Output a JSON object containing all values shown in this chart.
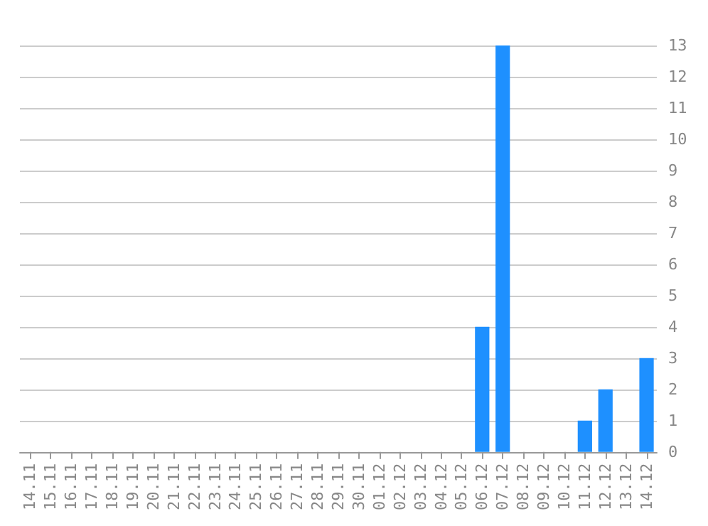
{
  "chart_data": {
    "type": "bar",
    "categories": [
      "14.11",
      "15.11",
      "16.11",
      "17.11",
      "18.11",
      "19.11",
      "20.11",
      "21.11",
      "22.11",
      "23.11",
      "24.11",
      "25.11",
      "26.11",
      "27.11",
      "28.11",
      "29.11",
      "30.11",
      "01.12",
      "02.12",
      "03.12",
      "04.12",
      "05.12",
      "06.12",
      "07.12",
      "08.12",
      "09.12",
      "10.12",
      "11.12",
      "12.12",
      "13.12",
      "14.12"
    ],
    "values": [
      0,
      0,
      0,
      0,
      0,
      0,
      0,
      0,
      0,
      0,
      0,
      0,
      0,
      0,
      0,
      0,
      0,
      0,
      0,
      0,
      0,
      0,
      4,
      13,
      0,
      0,
      0,
      1,
      2,
      0,
      3
    ],
    "color": "#1e90ff",
    "ylim": [
      0,
      13
    ],
    "yticks": [
      0,
      1,
      2,
      3,
      4,
      5,
      6,
      7,
      8,
      9,
      10,
      11,
      12,
      13
    ],
    "grid": "y"
  }
}
